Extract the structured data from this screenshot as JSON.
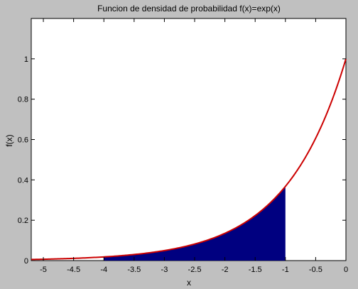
{
  "chart_data": {
    "type": "area",
    "title": "Funcion de densidad de probabilidad f(x)=exp(x)",
    "xlabel": "x",
    "ylabel": "f(x)",
    "xlim": [
      -5.2,
      0
    ],
    "ylim": [
      0,
      1.2
    ],
    "x_ticks": [
      -5,
      -4.5,
      -4,
      -3.5,
      -3,
      -2.5,
      -2,
      -1.5,
      -1,
      -0.5,
      0
    ],
    "x_tick_labels": [
      "-5",
      "-4.5",
      "-4",
      "-3.5",
      "-3",
      "-2.5",
      "-2",
      "-1.5",
      "-1",
      "-0.5",
      "0"
    ],
    "y_ticks": [
      0,
      0.2,
      0.4,
      0.6,
      0.8,
      1
    ],
    "y_tick_labels": [
      "0",
      "0.2",
      "0.4",
      "0.6",
      "0.8",
      "1"
    ],
    "grid": false,
    "series": [
      {
        "kind": "line",
        "color": "#cc0000",
        "function": "exp(x)",
        "x": [
          -5.2,
          -5,
          -4.5,
          -4,
          -3.5,
          -3,
          -2.5,
          -2,
          -1.5,
          -1,
          -0.5,
          0
        ],
        "y": [
          0.0055,
          0.0067,
          0.0111,
          0.0183,
          0.0302,
          0.0498,
          0.0821,
          0.1353,
          0.2231,
          0.3679,
          0.6065,
          1.0
        ]
      },
      {
        "kind": "filled-area",
        "color": "#000080",
        "x_range": [
          -4,
          -1
        ],
        "x": [
          -4,
          -3.5,
          -3,
          -2.5,
          -2,
          -1.5,
          -1
        ],
        "y": [
          0.0183,
          0.0302,
          0.0498,
          0.0821,
          0.1353,
          0.2231,
          0.3679
        ]
      }
    ]
  }
}
